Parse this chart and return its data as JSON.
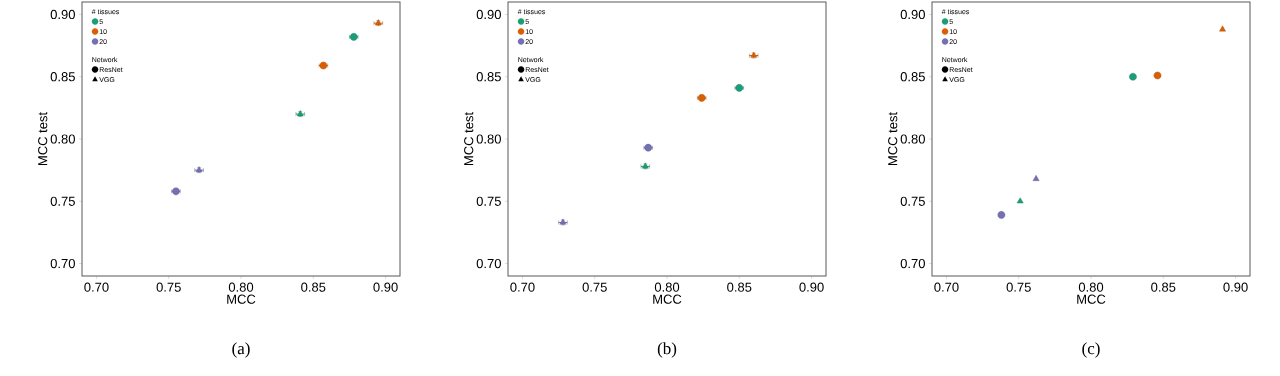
{
  "chart_data": [
    {
      "type": "scatter",
      "subtitle": "(a)",
      "xlabel": "MCC",
      "ylabel": "MCC test",
      "legend_title": "# tissues",
      "legend": "top left",
      "annotations": [
        "Network",
        "ResNet",
        "VGG"
      ],
      "xlim": [
        0.69,
        0.91
      ],
      "ylim": [
        0.69,
        0.91
      ],
      "xticks": [
        {
          "value": 0.7,
          "label": "0.70"
        },
        {
          "value": 0.75,
          "label": "0.75"
        },
        {
          "value": 0.8,
          "label": "0.80"
        },
        {
          "value": 0.85,
          "label": "0.85"
        },
        {
          "value": 0.9,
          "label": "0.90"
        }
      ],
      "yticks": [
        {
          "value": 0.7,
          "label": "0.70"
        },
        {
          "value": 0.75,
          "label": "0.75"
        },
        {
          "value": 0.8,
          "label": "0.80"
        },
        {
          "value": 0.85,
          "label": "0.85"
        },
        {
          "value": 0.9,
          "label": "0.90"
        }
      ],
      "series": [
        {
          "name": "5",
          "color": "#1b9e77",
          "marker": "circle",
          "x": [
            0.878
          ],
          "values": [
            0.882
          ],
          "xerrors": [
            0.003
          ],
          "errors": [
            0.002
          ]
        },
        {
          "color": "#1b9e77",
          "marker": "triangle",
          "x": [
            0.841
          ],
          "values": [
            0.82
          ],
          "xerrors": [
            0.003
          ],
          "errors": [
            0.002
          ]
        },
        {
          "name": "10",
          "color": "#d95f02",
          "marker": "circle",
          "x": [
            0.857
          ],
          "values": [
            0.859
          ],
          "xerrors": [
            0.003
          ],
          "errors": [
            0.002
          ]
        },
        {
          "color": "#d95f02",
          "marker": "triangle",
          "x": [
            0.895
          ],
          "values": [
            0.893
          ],
          "xerrors": [
            0.003
          ],
          "errors": [
            0.002
          ]
        },
        {
          "name": "20",
          "color": "#7570b3",
          "marker": "circle",
          "x": [
            0.755
          ],
          "values": [
            0.758
          ],
          "xerrors": [
            0.003
          ],
          "errors": [
            0.002
          ]
        },
        {
          "color": "#7570b3",
          "marker": "triangle",
          "x": [
            0.771
          ],
          "values": [
            0.775
          ],
          "xerrors": [
            0.003
          ],
          "errors": [
            0.002
          ]
        }
      ]
    },
    {
      "type": "scatter",
      "subtitle": "(b)",
      "xlabel": "MCC",
      "ylabel": "MCC test",
      "legend_title": "# tissues",
      "legend": "top left",
      "annotations": [
        "Network",
        "ResNet",
        "VGG"
      ],
      "xlim": [
        0.69,
        0.91
      ],
      "ylim": [
        0.69,
        0.91
      ],
      "xticks": [
        {
          "value": 0.7,
          "label": "0.70"
        },
        {
          "value": 0.75,
          "label": "0.75"
        },
        {
          "value": 0.8,
          "label": "0.80"
        },
        {
          "value": 0.85,
          "label": "0.85"
        },
        {
          "value": 0.9,
          "label": "0.90"
        }
      ],
      "yticks": [
        {
          "value": 0.7,
          "label": "0.70"
        },
        {
          "value": 0.75,
          "label": "0.75"
        },
        {
          "value": 0.8,
          "label": "0.80"
        },
        {
          "value": 0.85,
          "label": "0.85"
        },
        {
          "value": 0.9,
          "label": "0.90"
        }
      ],
      "series": [
        {
          "name": "5",
          "color": "#1b9e77",
          "marker": "circle",
          "x": [
            0.85
          ],
          "values": [
            0.841
          ],
          "xerrors": [
            0.003
          ],
          "errors": [
            0.002
          ]
        },
        {
          "color": "#1b9e77",
          "marker": "triangle",
          "x": [
            0.785
          ],
          "values": [
            0.778
          ],
          "xerrors": [
            0.003
          ],
          "errors": [
            0.002
          ]
        },
        {
          "name": "10",
          "color": "#d95f02",
          "marker": "circle",
          "x": [
            0.824
          ],
          "values": [
            0.833
          ],
          "xerrors": [
            0.003
          ],
          "errors": [
            0.002
          ]
        },
        {
          "color": "#d95f02",
          "marker": "triangle",
          "x": [
            0.86
          ],
          "values": [
            0.867
          ],
          "xerrors": [
            0.003
          ],
          "errors": [
            0.002
          ]
        },
        {
          "name": "20",
          "color": "#7570b3",
          "marker": "circle",
          "x": [
            0.787
          ],
          "values": [
            0.793
          ],
          "xerrors": [
            0.003
          ],
          "errors": [
            0.002
          ]
        },
        {
          "color": "#7570b3",
          "marker": "triangle",
          "x": [
            0.728
          ],
          "values": [
            0.733
          ],
          "xerrors": [
            0.003
          ],
          "errors": [
            0.002
          ]
        }
      ]
    },
    {
      "type": "scatter",
      "subtitle": "(c)",
      "xlabel": "MCC",
      "ylabel": "MCC test",
      "legend_title": "# tissues",
      "legend": "top left",
      "annotations": [
        "Network",
        "ResNet",
        "VGG"
      ],
      "xlim": [
        0.69,
        0.91
      ],
      "ylim": [
        0.69,
        0.91
      ],
      "xticks": [
        {
          "value": 0.7,
          "label": "0.70"
        },
        {
          "value": 0.75,
          "label": "0.75"
        },
        {
          "value": 0.8,
          "label": "0.80"
        },
        {
          "value": 0.85,
          "label": "0.85"
        },
        {
          "value": 0.9,
          "label": "0.90"
        }
      ],
      "yticks": [
        {
          "value": 0.7,
          "label": "0.70"
        },
        {
          "value": 0.75,
          "label": "0.75"
        },
        {
          "value": 0.8,
          "label": "0.80"
        },
        {
          "value": 0.85,
          "label": "0.85"
        },
        {
          "value": 0.9,
          "label": "0.90"
        }
      ],
      "series": [
        {
          "name": "5",
          "color": "#1b9e77",
          "marker": "circle",
          "x": [
            0.829
          ],
          "values": [
            0.85
          ]
        },
        {
          "color": "#1b9e77",
          "marker": "triangle",
          "x": [
            0.751
          ],
          "values": [
            0.75
          ]
        },
        {
          "name": "10",
          "color": "#d95f02",
          "marker": "circle",
          "x": [
            0.846
          ],
          "values": [
            0.851
          ]
        },
        {
          "color": "#d95f02",
          "marker": "triangle",
          "x": [
            0.891
          ],
          "values": [
            0.888
          ]
        },
        {
          "name": "20",
          "color": "#7570b3",
          "marker": "circle",
          "x": [
            0.738
          ],
          "values": [
            0.739
          ]
        },
        {
          "color": "#7570b3",
          "marker": "triangle",
          "x": [
            0.762
          ],
          "values": [
            0.768
          ]
        }
      ]
    }
  ]
}
